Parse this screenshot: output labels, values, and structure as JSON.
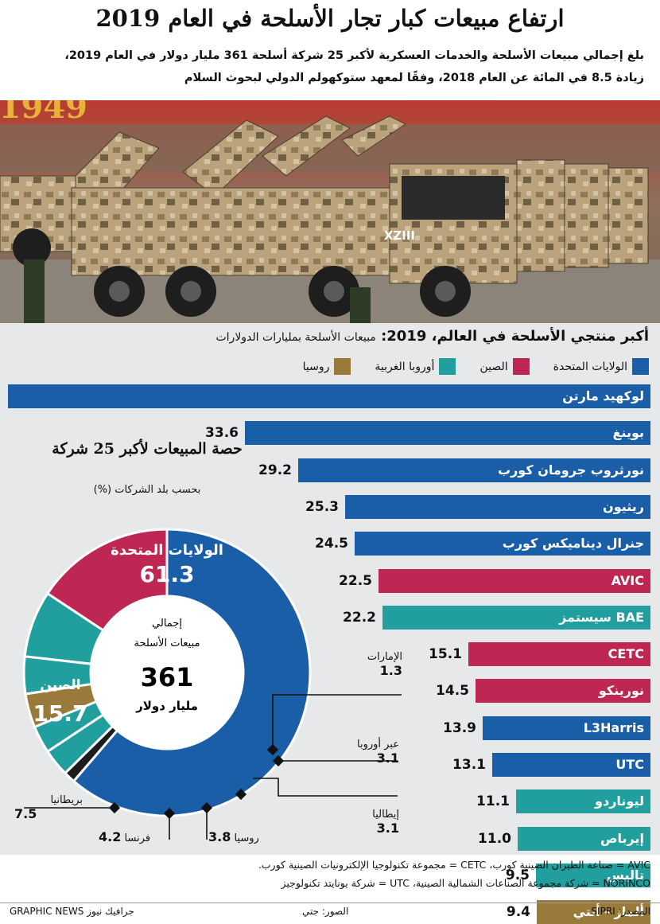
{
  "header": {
    "title": "ارتفاع مبيعات كبار تجار الأسلحة في العام 2019",
    "subtitle_line1": "بلغ إجمالي مبيعات الأسلحة والخدمات العسكرية لأكبر 25 شركة أسلحة 361 مليار دولار في العام 2019،",
    "subtitle_line2": "زيادة 8.5 في المائة عن العام 2018، وفقًا لمعهد ستوكهولم الدولي لبحوث السلام"
  },
  "photo": {
    "vehicle_marking": "XZIII",
    "banner_text": "1949"
  },
  "chart_heading": {
    "main": "أكبر منتجي الأسلحة في العالم، 2019:",
    "unit": "مبيعات الأسلحة بمليارات الدولارات"
  },
  "legend": [
    {
      "label": "الولايات المتحدة",
      "color": "#1a5ea8"
    },
    {
      "label": "الصين",
      "color": "#be2653"
    },
    {
      "label": "أوروبا الغربية",
      "color": "#219f9f"
    },
    {
      "label": "روسيا",
      "color": "#9a7a3a"
    }
  ],
  "colors": {
    "usa": "#1a5ea8",
    "china": "#be2653",
    "europe": "#219f9f",
    "russia": "#9a7a3a",
    "background": "#e7e8ea"
  },
  "chart_data": [
    {
      "type": "bar",
      "title": "أكبر منتجي الأسلحة في العالم، 2019",
      "unit": "مبيعات الأسلحة بمليارات الدولارات",
      "categories": [
        "لوكهيد مارتن",
        "بوينغ",
        "نورثروب جرومان كورب",
        "ريثيون",
        "جنرال ديناميكس كورب",
        "AVIC",
        "BAE سيستمز",
        "CETC",
        "نورينكو",
        "L3Harris",
        "UTC",
        "ليوناردو",
        "إيرباص",
        "تاليس",
        "ألماز - أنتي"
      ],
      "values": [
        53.2,
        33.6,
        29.2,
        25.3,
        24.5,
        22.5,
        22.2,
        15.1,
        14.5,
        13.9,
        13.1,
        11.1,
        11.0,
        9.5,
        9.4
      ],
      "value_labels": [
        "",
        "33.6",
        "29.2",
        "25.3",
        "24.5",
        "22.5",
        "22.2",
        "15.1",
        "14.5",
        "13.9",
        "13.1",
        "11.1",
        "11.0",
        "9.5",
        "9.4"
      ],
      "groups": [
        "usa",
        "usa",
        "usa",
        "usa",
        "usa",
        "china",
        "europe",
        "china",
        "china",
        "usa",
        "usa",
        "europe",
        "europe",
        "europe",
        "russia"
      ]
    },
    {
      "type": "pie",
      "title": "حصة المبيعات لأكبر 25 شركة",
      "note": "بحسب بلد الشركات (%)",
      "center_label": "إجمالي مبيعات الأسلحة",
      "center_value": "361",
      "center_unit": "مليار دولار",
      "segments": [
        {
          "label": "الولايات المتحدة",
          "value": 61.3,
          "group": "usa"
        },
        {
          "label": "الإمارات",
          "value": 1.3,
          "group": "uae"
        },
        {
          "label": "عبر أوروبا",
          "value": 3.1,
          "group": "europe"
        },
        {
          "label": "إيطاليا",
          "value": 3.1,
          "group": "europe"
        },
        {
          "label": "روسيا",
          "value": 3.8,
          "group": "russia"
        },
        {
          "label": "فرنسا",
          "value": 4.2,
          "group": "europe"
        },
        {
          "label": "بريطانيا",
          "value": 7.5,
          "group": "europe"
        },
        {
          "label": "الصين",
          "value": 15.7,
          "group": "china"
        }
      ]
    }
  ],
  "donut_labels": {
    "usa": {
      "label": "الولايات المتحدة",
      "value": "61.3"
    },
    "china": {
      "label": "الصين",
      "value": "15.7"
    },
    "uae": {
      "label": "الإمارات",
      "value": "1.3"
    },
    "transeuro": {
      "label": "عبر أوروبا",
      "value": "3.1"
    },
    "italy": {
      "label": "إيطاليا",
      "value": "3.1"
    },
    "russia": {
      "label": "روسيا",
      "value": "3.8"
    },
    "france": {
      "label": "فرنسا",
      "value": "4.2"
    },
    "uk": {
      "label": "بريطانيا",
      "value": "7.5"
    }
  },
  "footnotes": {
    "line1": "AVIC = صناعة الطيران الصينية كورب، CETC = مجموعة تكنولوجيا الإلكترونيات الصينية كورب.",
    "line2": "NORINCO = شركة مجموعة الصناعات الشمالية الصينية، UTC = شركة يونايتد تكنولوجيز"
  },
  "credits": {
    "source": "المصدر: SIPRI",
    "photo": "الصور: جتي",
    "agency": "GRAPHIC NEWS جرافيك نيوز"
  }
}
